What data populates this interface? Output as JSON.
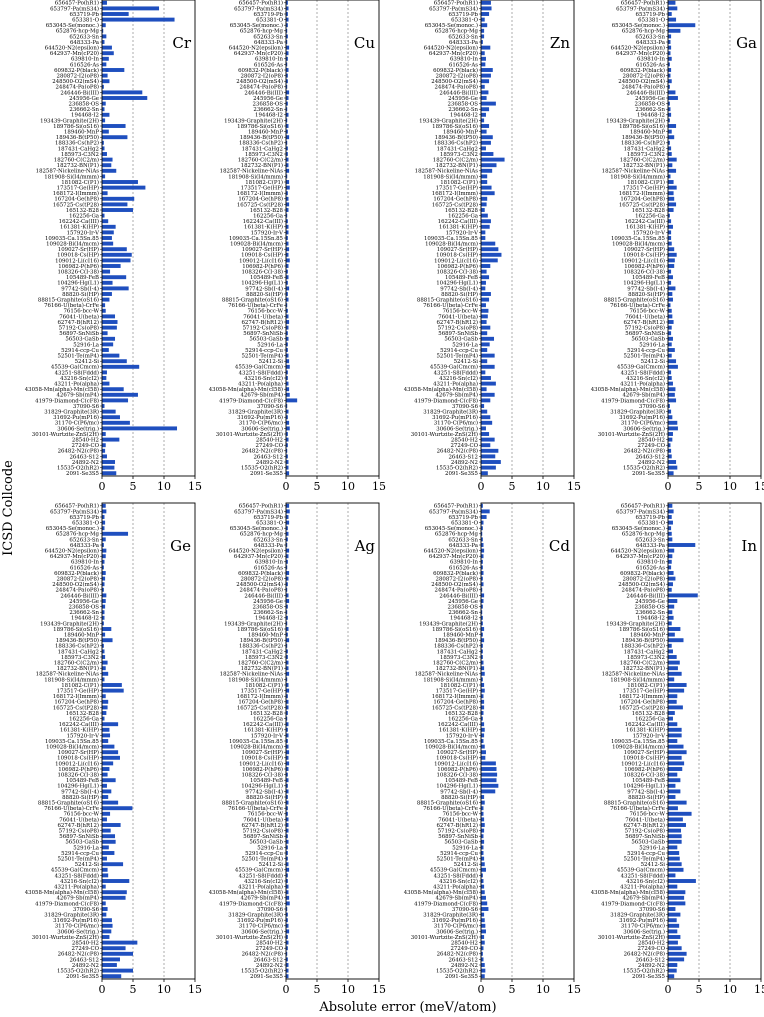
{
  "chart_data": {
    "type": "bar",
    "orientation": "horizontal",
    "xlabel": "Absolute error (meV/atom)",
    "ylabel": "ICSD Collcode",
    "xlim": [
      0,
      15
    ],
    "xticks": [
      "0",
      "5",
      "10",
      "15"
    ],
    "reference_lines": [
      5,
      10
    ],
    "categories": [
      "656457-Po(hR1)",
      "653797-Pa(mS34)",
      "653719-Pb",
      "653381-O",
      "653045-Se(monoc.)",
      "652876-hcp-Mg",
      "652633-Sn",
      "648333-Pa",
      "644520-N2(epsilon)",
      "642937-Mn(cP20)",
      "639810-In",
      "616526-As",
      "609832-P(black)",
      "280872-I2(oP8)",
      "248500-O2(mS4)",
      "248474-Pa(oP8)",
      "246446-Bi(III)",
      "245956-Ge",
      "236858-OS",
      "236662-Sn",
      "194468-I2",
      "193439-Graphite(2H)",
      "189786-Si(oS16)",
      "189460-MnP",
      "189436-B(tP50)",
      "188336-Cs(hP2)",
      "187431-CaHg2",
      "185973-C3N2",
      "182760-C(C2/m)",
      "182732-BN(P1)",
      "182587-Nickeline-NiAs",
      "181908-Si(I4/mmm)",
      "181082-C(P1)",
      "173517-Ge(HP)",
      "168172-I(Immm)",
      "167204-Ge(hP8)",
      "165725-Cs(tP28)",
      "165132-B28",
      "162256-Ga",
      "162242-Ca(III)",
      "161381-K(HP)",
      "157920-Ir-V",
      "109035-Ca.15Sn.85",
      "109028-Bi(I4/mcm)",
      "109027-Sr(HP)",
      "109018-Cs(HP)",
      "109012-Li(cI16)",
      "106982-P(hP6)",
      "108326-C(I-38)",
      "105489-FeB",
      "104296-Hg(L1)",
      "97742-Sb(I-4)",
      "88820-Si(HP)",
      "88815-Graphite(oS16)",
      "76166-U(beta)-CrFe",
      "76156-bcc-W",
      "76041-U(beta)",
      "62747-B(hR12)",
      "57192-Cs(oP8)",
      "56897-SnNiSb",
      "56503-GaSb",
      "52916-La",
      "52914-ccp-Cu",
      "52501-Te(mP4)",
      "52412-Si",
      "45539-Ga(Cmcm)",
      "43251-S8(Fddd)",
      "43216-Sn(cI2)",
      "43211-Po(alpha)",
      "43058-Mn(alpha)-Mn(cI58)",
      "42679-Sb(mP4)",
      "41979-Diamond-C(cF8)",
      "37090-S6",
      "31829-Graphite(3R)",
      "31692-Pu(mP16)",
      "31170-C(P6/mc)",
      "30606-Se(trig.)",
      "30101-Wurtzite-ZnS(2H)",
      "28540-H2",
      "27249-CO",
      "26482-N2(cP8)",
      "26463-S12",
      "24892-N2",
      "15535-O2(hR2)",
      "2091-Se3S5"
    ],
    "tick_label_mode": "every",
    "panels": [
      {
        "title": "Cr",
        "values": [
          0.8,
          9.2,
          4.3,
          11.7,
          0.6,
          0.2,
          0.7,
          0.4,
          1.6,
          1.9,
          1.1,
          0.7,
          3.6,
          0.9,
          1.2,
          0.3,
          6.5,
          7.3,
          0.6,
          0.4,
          1.2,
          0.5,
          3.8,
          1.1,
          4.1,
          0.3,
          0.4,
          0.8,
          1.7,
          1.5,
          2.3,
          0.5,
          5.8,
          7.0,
          0.9,
          5.2,
          4.1,
          5.0,
          0.4,
          1.0,
          2.2,
          1.9,
          1.6,
          1.8,
          4.0,
          4.8,
          4.6,
          3.0,
          1.3,
          3.9,
          1.7,
          4.3,
          1.6,
          1.2,
          0.5,
          0.6,
          2.1,
          2.5,
          2.4,
          0.9,
          2.1,
          1.8,
          1.1,
          2.8,
          4.0,
          6.0,
          0.8,
          0.7,
          1.2,
          3.5,
          5.8,
          4.2,
          0.4,
          2.2,
          2.9,
          4.5,
          12.1,
          0.6,
          2.8,
          0.6,
          0.5,
          0.8,
          2.1,
          2.0,
          2.3
        ]
      },
      {
        "title": "Cu",
        "values": [
          0.3,
          0.4,
          0.3,
          0.4,
          0.3,
          0.2,
          0.3,
          0.2,
          0.5,
          0.4,
          0.3,
          0.2,
          0.4,
          0.3,
          0.3,
          0.2,
          0.5,
          0.4,
          0.3,
          0.2,
          0.4,
          0.2,
          0.4,
          0.3,
          0.5,
          0.2,
          0.3,
          0.3,
          0.4,
          0.4,
          0.5,
          0.2,
          0.5,
          0.6,
          0.3,
          0.4,
          0.5,
          0.4,
          0.2,
          0.3,
          0.4,
          0.4,
          0.3,
          0.4,
          0.5,
          0.4,
          0.6,
          0.4,
          0.3,
          0.4,
          0.3,
          0.5,
          0.3,
          0.4,
          0.2,
          0.3,
          0.4,
          0.5,
          0.4,
          0.3,
          0.4,
          0.3,
          0.3,
          0.4,
          0.5,
          0.6,
          0.3,
          0.3,
          0.4,
          0.5,
          0.6,
          1.8,
          0.2,
          0.4,
          0.3,
          0.5,
          0.6,
          0.3,
          0.4,
          0.3,
          0.2,
          0.3,
          0.4,
          0.4,
          0.5
        ]
      },
      {
        "title": "Zn",
        "values": [
          1.6,
          1.7,
          1.3,
          0.6,
          1.0,
          0.5,
          0.5,
          0.3,
          1.5,
          0.6,
          0.8,
          0.7,
          1.9,
          1.6,
          1.3,
          0.6,
          1.2,
          0.9,
          2.4,
          1.3,
          0.8,
          0.5,
          1.3,
          0.9,
          1.9,
          1.6,
          0.8,
          2.0,
          3.8,
          2.5,
          1.8,
          1.0,
          1.0,
          1.7,
          2.2,
          1.0,
          0.9,
          0.6,
          1.1,
          1.6,
          1.4,
          0.7,
          0.7,
          2.3,
          2.8,
          3.3,
          2.7,
          1.5,
          0.9,
          1.3,
          0.8,
          0.7,
          1.6,
          1.3,
          0.8,
          1.2,
          1.1,
          0.9,
          1.5,
          1.0,
          2.1,
          1.4,
          1.0,
          2.2,
          1.0,
          2.2,
          0.7,
          1.6,
          2.4,
          0.9,
          2.2,
          1.5,
          0.5,
          1.0,
          1.5,
          1.8,
          0.8,
          1.3,
          2.2,
          1.5,
          2.8,
          2.3,
          3.2,
          2.4,
          1.1
        ]
      },
      {
        "title": "Ga",
        "values": [
          1.2,
          1.5,
          0.6,
          1.3,
          4.4,
          2.0,
          0.5,
          0.4,
          0.5,
          0.4,
          0.6,
          0.3,
          0.5,
          0.4,
          0.6,
          0.3,
          1.2,
          1.6,
          0.3,
          0.4,
          0.5,
          0.3,
          1.3,
          0.6,
          1.0,
          0.3,
          0.5,
          0.6,
          1.4,
          0.7,
          1.3,
          0.4,
          0.9,
          1.4,
          0.9,
          1.0,
          1.3,
          0.9,
          0.3,
          0.5,
          0.8,
          0.5,
          0.5,
          0.6,
          1.0,
          1.4,
          1.1,
          1.0,
          0.5,
          0.8,
          0.5,
          1.2,
          0.7,
          0.8,
          0.4,
          0.6,
          0.7,
          0.9,
          0.6,
          0.5,
          0.8,
          0.6,
          1.1,
          0.6,
          1.3,
          1.6,
          0.5,
          0.6,
          0.8,
          1.2,
          1.1,
          1.3,
          0.3,
          0.5,
          0.7,
          1.5,
          1.6,
          0.8,
          0.7,
          0.4,
          0.5,
          0.6,
          1.3,
          1.5,
          0.9
        ]
      },
      {
        "title": "Ge",
        "values": [
          0.6,
          0.7,
          0.4,
          0.5,
          0.4,
          4.2,
          0.6,
          0.3,
          0.7,
          0.6,
          0.4,
          0.3,
          0.6,
          0.5,
          0.4,
          0.3,
          0.7,
          0.6,
          0.5,
          0.4,
          0.4,
          0.3,
          1.5,
          0.5,
          1.7,
          0.3,
          0.4,
          0.5,
          0.9,
          0.6,
          1.0,
          0.4,
          3.2,
          3.5,
          0.6,
          1.0,
          0.9,
          0.7,
          0.4,
          2.6,
          1.2,
          1.3,
          1.0,
          2.0,
          2.6,
          2.9,
          1.8,
          1.2,
          0.9,
          2.2,
          0.8,
          1.5,
          1.0,
          2.6,
          4.9,
          1.3,
          0.8,
          3.0,
          1.4,
          2.1,
          2.2,
          1.1,
          2.0,
          0.8,
          3.4,
          0.9,
          1.0,
          4.4,
          0.6,
          4.0,
          3.8,
          0.6,
          0.9,
          0.7,
          1.6,
          1.7,
          1.5,
          1.2,
          5.7,
          3.8,
          5.0,
          2.9,
          2.4,
          5.0,
          3.1
        ]
      },
      {
        "title": "Ag",
        "values": [
          0.5,
          0.6,
          0.4,
          0.5,
          0.3,
          0.4,
          0.3,
          0.2,
          0.5,
          0.4,
          0.3,
          0.2,
          0.5,
          0.4,
          0.3,
          0.2,
          0.4,
          0.5,
          0.3,
          0.2,
          0.3,
          0.2,
          0.4,
          0.3,
          0.5,
          0.2,
          0.3,
          0.3,
          0.4,
          0.4,
          0.5,
          0.2,
          0.4,
          0.5,
          0.3,
          0.4,
          0.4,
          0.3,
          0.2,
          0.4,
          0.3,
          0.4,
          0.3,
          0.4,
          0.5,
          0.4,
          0.5,
          0.4,
          0.3,
          0.4,
          0.3,
          0.4,
          0.3,
          0.4,
          0.3,
          0.3,
          0.4,
          0.4,
          0.4,
          0.3,
          0.4,
          0.3,
          0.3,
          0.3,
          0.4,
          0.5,
          0.3,
          0.3,
          0.4,
          0.4,
          0.5,
          0.6,
          0.2,
          0.3,
          0.3,
          0.4,
          0.5,
          0.3,
          0.4,
          0.3,
          0.2,
          0.3,
          0.4,
          0.4,
          0.4
        ]
      },
      {
        "title": "Cd",
        "values": [
          0.3,
          1.4,
          0.9,
          0.4,
          0.3,
          0.2,
          0.3,
          0.4,
          0.5,
          0.4,
          0.3,
          0.3,
          0.4,
          0.3,
          0.4,
          0.2,
          0.5,
          0.4,
          0.3,
          0.2,
          0.3,
          0.3,
          0.5,
          0.3,
          0.5,
          0.3,
          0.3,
          0.3,
          0.4,
          0.5,
          0.6,
          0.3,
          0.5,
          0.6,
          0.4,
          0.5,
          0.5,
          0.4,
          0.3,
          0.5,
          0.6,
          0.5,
          0.4,
          0.6,
          0.8,
          0.7,
          2.4,
          2.5,
          2.6,
          2.5,
          2.8,
          2.3,
          0.5,
          0.6,
          0.4,
          0.4,
          0.5,
          0.6,
          0.5,
          0.4,
          0.5,
          0.4,
          0.4,
          0.5,
          0.6,
          0.8,
          0.3,
          0.4,
          0.5,
          0.6,
          0.8,
          1.0,
          1.2,
          0.5,
          0.6,
          0.7,
          0.8,
          0.5,
          0.6,
          0.4,
          0.3,
          0.4,
          0.6,
          0.7,
          0.6
        ]
      },
      {
        "title": "In",
        "values": [
          0.7,
          0.9,
          0.6,
          0.8,
          0.5,
          0.6,
          0.7,
          4.4,
          1.0,
          0.7,
          0.6,
          0.5,
          0.9,
          1.2,
          0.8,
          0.6,
          4.8,
          1.5,
          1.0,
          0.7,
          0.9,
          0.6,
          2.0,
          1.1,
          2.5,
          0.6,
          0.8,
          1.4,
          1.9,
          1.6,
          2.2,
          1.0,
          3.0,
          2.6,
          1.5,
          1.4,
          2.4,
          1.1,
          0.8,
          1.5,
          2.2,
          2.2,
          1.5,
          2.5,
          3.0,
          2.2,
          2.6,
          2.3,
          1.5,
          2.0,
          1.2,
          2.0,
          1.2,
          3.0,
          1.6,
          3.8,
          2.4,
          2.9,
          2.1,
          2.2,
          2.2,
          1.5,
          1.8,
          1.9,
          2.2,
          2.5,
          1.2,
          4.5,
          1.5,
          2.8,
          2.6,
          2.8,
          1.2,
          2.0,
          1.4,
          1.8,
          1.5,
          2.0,
          1.6,
          2.2,
          3.0,
          2.6,
          1.5,
          1.4,
          1.0
        ]
      }
    ]
  },
  "colors": {
    "bar": "#1f4fbf",
    "axis": "#000000",
    "refline": "#9a9a9a",
    "text": "#000000"
  }
}
